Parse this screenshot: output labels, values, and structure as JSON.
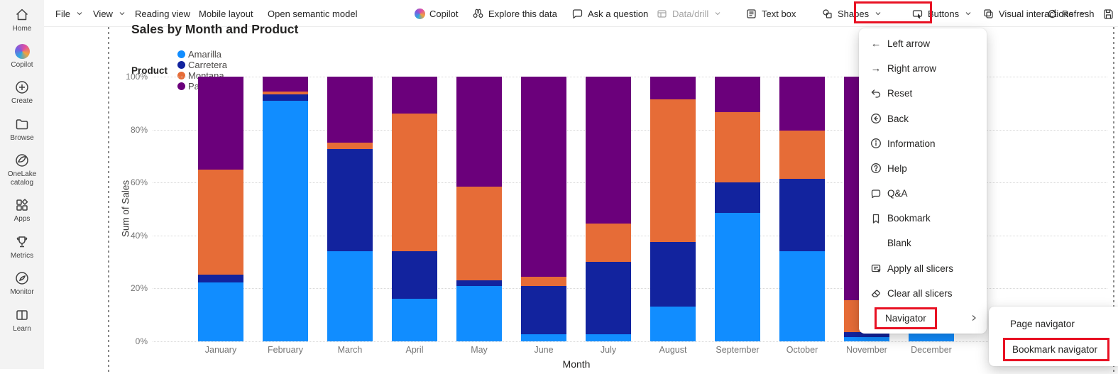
{
  "sidebar": {
    "items": [
      {
        "label": "Home"
      },
      {
        "label": "Copilot"
      },
      {
        "label": "Create"
      },
      {
        "label": "Browse"
      },
      {
        "label": "OneLake catalog"
      },
      {
        "label": "Apps"
      },
      {
        "label": "Metrics"
      },
      {
        "label": "Monitor"
      },
      {
        "label": "Learn"
      }
    ]
  },
  "toolbar": {
    "file": "File",
    "view": "View",
    "reading_view": "Reading view",
    "mobile_layout": "Mobile layout",
    "open_semantic_model": "Open semantic model",
    "copilot": "Copilot",
    "explore": "Explore this data",
    "ask": "Ask a question",
    "data_drill": "Data/drill",
    "text_box": "Text box",
    "shapes": "Shapes",
    "buttons": "Buttons",
    "visual_interactions": "Visual interactions",
    "refresh": "Refresh"
  },
  "buttons_menu": {
    "items": [
      {
        "icon": "left-arrow",
        "label": "Left arrow"
      },
      {
        "icon": "right-arrow",
        "label": "Right arrow"
      },
      {
        "icon": "reset",
        "label": "Reset"
      },
      {
        "icon": "back",
        "label": "Back"
      },
      {
        "icon": "information",
        "label": "Information"
      },
      {
        "icon": "help",
        "label": "Help"
      },
      {
        "icon": "qa",
        "label": "Q&A"
      },
      {
        "icon": "bookmark",
        "label": "Bookmark"
      },
      {
        "icon": "none",
        "label": "Blank"
      },
      {
        "icon": "apply-slicers",
        "label": "Apply all slicers"
      },
      {
        "icon": "eraser",
        "label": "Clear all slicers"
      },
      {
        "icon": "none",
        "label": "Navigator"
      }
    ],
    "submenu": [
      {
        "label": "Page navigator"
      },
      {
        "label": "Bookmark navigator"
      }
    ]
  },
  "highlight_color": "#e81123",
  "chart_data": {
    "type": "bar",
    "subtype": "100%-stacked-column",
    "title": "Sales by Month and Product",
    "legend_title": "Product",
    "legend_position": "top-left",
    "xlabel": "Month",
    "ylabel": "Sum of Sales",
    "ylim": [
      0,
      100
    ],
    "yticks": [
      "0%",
      "20%",
      "40%",
      "60%",
      "80%",
      "100%"
    ],
    "grid": "horizontal-dotted",
    "categories": [
      "January",
      "February",
      "March",
      "April",
      "May",
      "June",
      "July",
      "August",
      "September",
      "October",
      "November",
      "December"
    ],
    "series": [
      {
        "name": "Amarilla",
        "color": "#118DFF",
        "values": [
          22.3,
          91.0,
          34.0,
          16.1,
          21.0,
          2.6,
          2.6,
          13.1,
          48.5,
          34.0,
          1.5,
          3.0
        ]
      },
      {
        "name": "Carretera",
        "color": "#12239E",
        "values": [
          2.9,
          2.3,
          38.6,
          17.9,
          2.0,
          18.4,
          27.4,
          24.4,
          11.5,
          27.5,
          2.0,
          null
        ]
      },
      {
        "name": "Montana",
        "color": "#E66C37",
        "values": [
          39.8,
          1.2,
          2.4,
          52.0,
          35.5,
          3.5,
          14.5,
          54.0,
          26.5,
          18.0,
          12.0,
          null
        ]
      },
      {
        "name": "Paseo",
        "color": "#6B007B",
        "values": [
          35.0,
          5.5,
          25.0,
          14.0,
          41.5,
          75.5,
          55.5,
          8.5,
          13.5,
          20.5,
          84.5,
          null
        ]
      }
    ],
    "note": "December column is mostly hidden behind the open Buttons menu; only its bottom segment is visible."
  }
}
